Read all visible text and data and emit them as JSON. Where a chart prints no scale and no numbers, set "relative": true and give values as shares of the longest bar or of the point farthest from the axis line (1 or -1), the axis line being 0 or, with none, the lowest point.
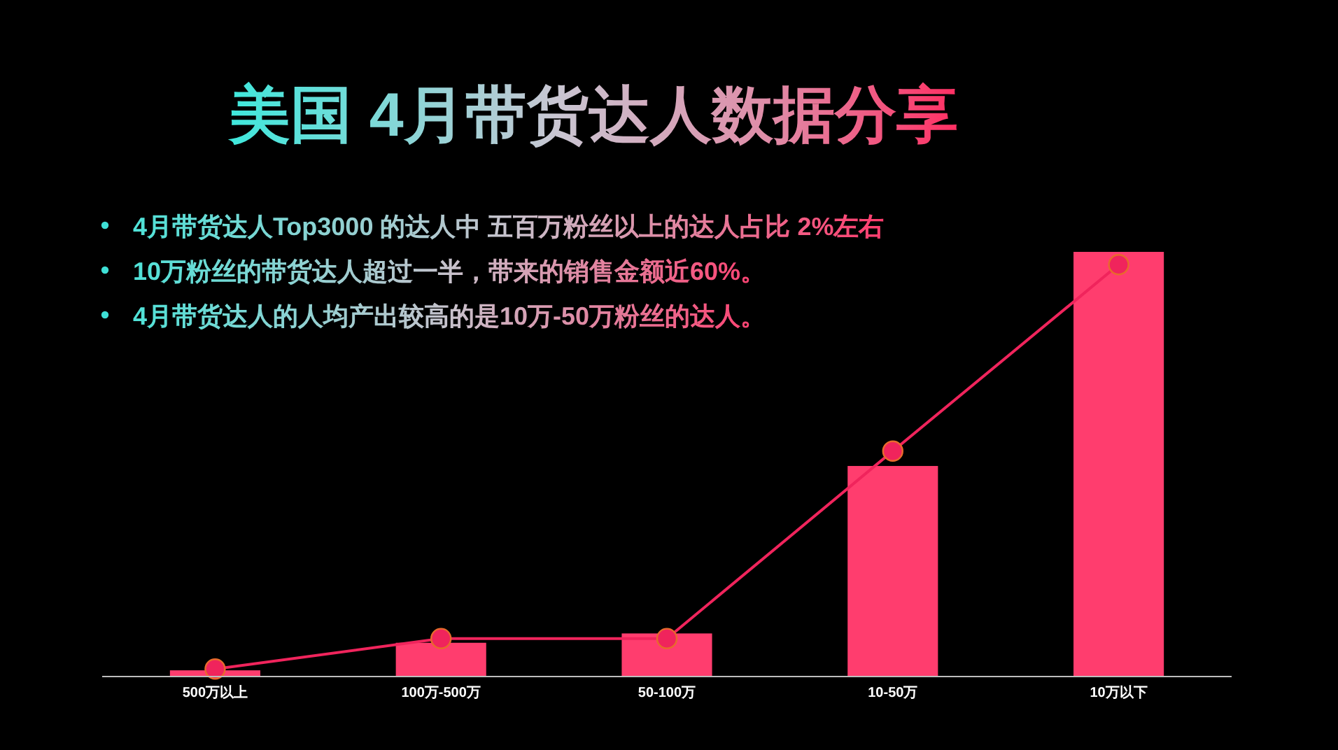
{
  "chart_data": {
    "type": "bar",
    "title": "美国 4月带货达人数据分享",
    "annotations": [
      "4月带货达人Top3000 的达人中 五百万粉丝以上的达人占比 2%左右",
      "10万粉丝的带货达人超过一半，带来的销售金额近60%。",
      "4月带货达人的人均产出较高的是10万-50万粉丝的达人。"
    ],
    "categories": [
      "500万以上",
      "100万-500万",
      "50-100万",
      "10-50万",
      "10万以下"
    ],
    "relative": true,
    "series": [
      {
        "color": "#ff3d6e",
        "values": [
          0.013,
          0.078,
          0.1,
          0.495,
          1
        ]
      },
      {
        "type": "line",
        "color": "#f0245c",
        "marker": "circle",
        "values": [
          0.016,
          0.088,
          0.088,
          0.53,
          0.97
        ]
      }
    ]
  }
}
